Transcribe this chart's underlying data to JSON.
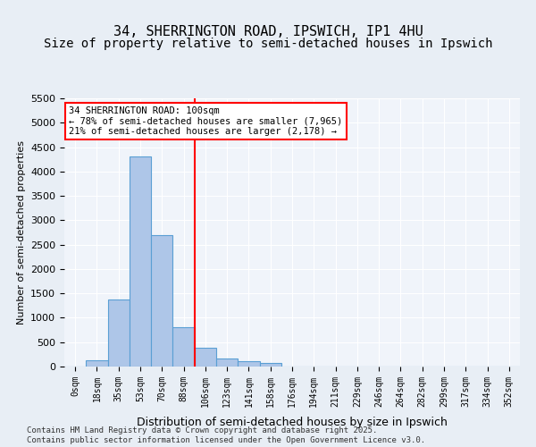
{
  "title1": "34, SHERRINGTON ROAD, IPSWICH, IP1 4HU",
  "title2": "Size of property relative to semi-detached houses in Ipswich",
  "xlabel": "Distribution of semi-detached houses by size in Ipswich",
  "ylabel": "Number of semi-detached properties",
  "bin_labels": [
    "0sqm",
    "18sqm",
    "35sqm",
    "53sqm",
    "70sqm",
    "88sqm",
    "106sqm",
    "123sqm",
    "141sqm",
    "158sqm",
    "176sqm",
    "194sqm",
    "211sqm",
    "229sqm",
    "246sqm",
    "264sqm",
    "282sqm",
    "299sqm",
    "317sqm",
    "334sqm",
    "352sqm"
  ],
  "bar_values": [
    5,
    130,
    1380,
    4300,
    2700,
    800,
    390,
    170,
    115,
    80,
    0,
    0,
    0,
    0,
    0,
    0,
    0,
    0,
    0,
    0,
    0
  ],
  "bar_color": "#aec6e8",
  "bar_edge_color": "#5a9fd4",
  "vline_color": "red",
  "annotation_text": "34 SHERRINGTON ROAD: 100sqm\n← 78% of semi-detached houses are smaller (7,965)\n21% of semi-detached houses are larger (2,178) →",
  "ylim": [
    0,
    5500
  ],
  "yticks": [
    0,
    500,
    1000,
    1500,
    2000,
    2500,
    3000,
    3500,
    4000,
    4500,
    5000,
    5500
  ],
  "background_color": "#e8eef5",
  "plot_background": "#f0f4fa",
  "footer": "Contains HM Land Registry data © Crown copyright and database right 2025.\nContains public sector information licensed under the Open Government Licence v3.0.",
  "title_fontsize": 11,
  "subtitle_fontsize": 10
}
